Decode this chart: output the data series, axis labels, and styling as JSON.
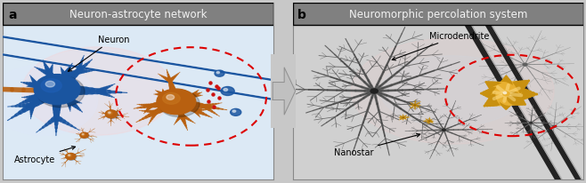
{
  "fig_width": 6.58,
  "fig_height": 2.07,
  "dpi": 100,
  "bg_color": "#c8c8c8",
  "panel_a_title": "Neuron-astrocyte network",
  "panel_b_title": "Neuromorphic percolation system",
  "label_a": "a",
  "label_b": "b",
  "title_bar_color": "#808080",
  "title_text_color": "#f2f2f2",
  "panel_bg_left": "#dce9f5",
  "panel_bg_right": "#d0d0d0",
  "label_fontsize": 10,
  "title_fontsize": 8.5,
  "annotation_fontsize": 7,
  "neuron_label": "Neuron",
  "astrocyte_label": "Astrocyte",
  "microdendrite_label": "Microdendrite",
  "nanostar_label": "Nanostar",
  "neuron_color": "#1a55a0",
  "neuron_color2": "#2060b8",
  "astrocyte_color": "#b86010",
  "astrocyte_color2": "#c87820",
  "microdendrite_color": "#505050",
  "microdendrite_dark": "#303030",
  "nanostar_color": "#c89010",
  "nanostar_color2": "#e0a820",
  "dashed_circle_color": "#dd0000",
  "arrow_color": "#909090",
  "arrow_fill": "#c0c0c0",
  "outer_border_color": "#888888",
  "tube_color": "#1a55a0",
  "tube_dark": "#0a3070"
}
